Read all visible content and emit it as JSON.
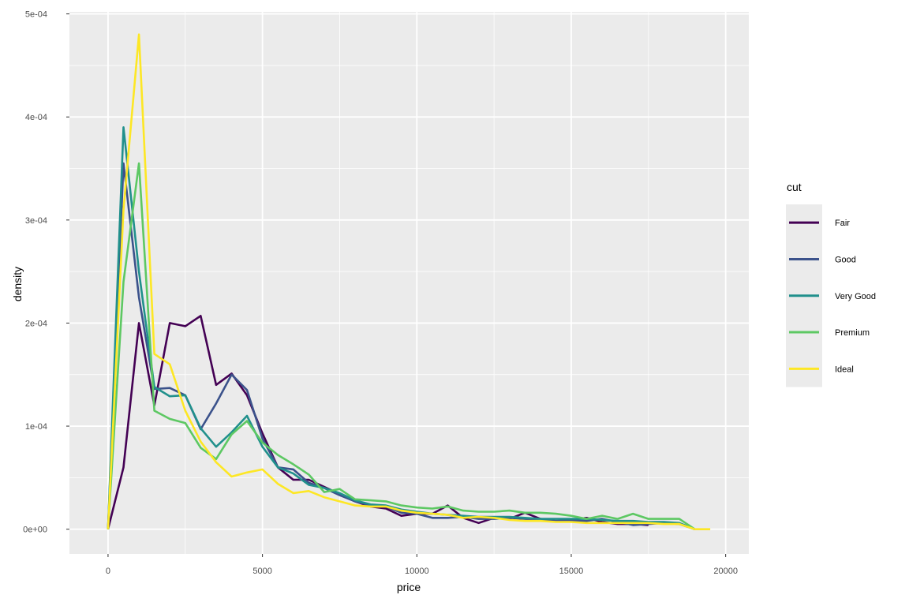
{
  "chart_data": {
    "type": "line",
    "geom": "frequency polygon (density)",
    "xlabel": "price",
    "ylabel": "density",
    "xlim": [
      -1250,
      20750
    ],
    "ylim": [
      -2.4e-05,
      0.000502
    ],
    "x_ticks": [
      0,
      5000,
      10000,
      15000,
      20000
    ],
    "x_tick_labels": [
      "0",
      "5000",
      "10000",
      "15000",
      "20000"
    ],
    "y_ticks": [
      0,
      0.0001,
      0.0002,
      0.0003,
      0.0004,
      0.0005
    ],
    "y_tick_labels": [
      "0e+00",
      "1e-04",
      "2e-04",
      "3e-04",
      "4e-04",
      "5e-04"
    ],
    "grid": true,
    "legend": {
      "title": "cut",
      "position": "right"
    },
    "series": [
      {
        "name": "Fair",
        "color": "#440154",
        "x": [
          0,
          500,
          1000,
          1500,
          2000,
          2500,
          3000,
          3500,
          4000,
          4500,
          5000,
          5500,
          6000,
          6500,
          7000,
          7500,
          8000,
          8500,
          9000,
          9500,
          10000,
          10500,
          11000,
          11500,
          12000,
          12500,
          13000,
          13500,
          14000,
          14500,
          15000,
          15500,
          16000,
          16500,
          17000,
          17500
        ],
        "y": [
          0,
          6e-05,
          0.0002,
          0.00012,
          0.0002,
          0.000197,
          0.000207,
          0.00014,
          0.000151,
          0.00013,
          9.3e-05,
          6e-05,
          4.8e-05,
          4.8e-05,
          4.1e-05,
          3.4e-05,
          2.7e-05,
          2.2e-05,
          2e-05,
          1.3e-05,
          1.5e-05,
          1.5e-05,
          2.3e-05,
          1.1e-05,
          6e-06,
          1.1e-05,
          1e-05,
          1.6e-05,
          1e-05,
          8e-06,
          9e-06,
          1.1e-05,
          7e-06,
          5e-06,
          5e-06,
          4e-06
        ]
      },
      {
        "name": "Good",
        "color": "#3B528B",
        "x": [
          0,
          500,
          1000,
          1500,
          2000,
          2500,
          3000,
          3500,
          4000,
          4500,
          5000,
          5500,
          6000,
          6500,
          7000,
          7500,
          8000,
          8500,
          9000,
          9500,
          10000,
          10500,
          11000,
          11500,
          12000,
          12500,
          13000,
          13500,
          14000,
          14500,
          15000,
          15500,
          16000,
          16500,
          17000,
          17500,
          18000,
          18500,
          19000
        ],
        "y": [
          0,
          0.000355,
          0.000225,
          0.000136,
          0.000137,
          0.00013,
          9.7e-05,
          0.000122,
          0.00015,
          0.000135,
          8.8e-05,
          6e-05,
          5.8e-05,
          4.5e-05,
          4e-05,
          3.3e-05,
          2.7e-05,
          2.3e-05,
          2.2e-05,
          1.6e-05,
          1.5e-05,
          1.1e-05,
          1.1e-05,
          1.2e-05,
          1e-05,
          1e-05,
          1.1e-05,
          1e-05,
          9e-06,
          8e-06,
          8e-06,
          8e-06,
          1e-05,
          7e-06,
          4e-06,
          5e-06,
          6e-06,
          5e-06,
          0
        ]
      },
      {
        "name": "Very Good",
        "color": "#21908C",
        "x": [
          0,
          500,
          1000,
          1500,
          2000,
          2500,
          3000,
          3500,
          4000,
          4500,
          5000,
          5500,
          6000,
          6500,
          7000,
          7500,
          8000,
          8500,
          9000,
          9500,
          10000,
          10500,
          11000,
          11500,
          12000,
          12500,
          13000,
          13500,
          14000,
          14500,
          15000,
          15500,
          16000,
          16500,
          17000,
          17500,
          18000,
          18500,
          19000
        ],
        "y": [
          0,
          0.00039,
          0.00025,
          0.000138,
          0.000129,
          0.00013,
          9.8e-05,
          8e-05,
          9.4e-05,
          0.00011,
          8e-05,
          6e-05,
          5.4e-05,
          4.3e-05,
          4e-05,
          3.5e-05,
          2.8e-05,
          2.4e-05,
          2.3e-05,
          1.9e-05,
          1.7e-05,
          1.5e-05,
          1.4e-05,
          1.3e-05,
          1.2e-05,
          1.2e-05,
          1.2e-05,
          1.1e-05,
          1e-05,
          1e-05,
          1e-05,
          1e-05,
          9e-06,
          8e-06,
          8e-06,
          7e-06,
          7e-06,
          6e-06,
          0
        ]
      },
      {
        "name": "Premium",
        "color": "#5DC863",
        "x": [
          0,
          500,
          1000,
          1500,
          2000,
          2500,
          3000,
          3500,
          4000,
          4500,
          5000,
          5500,
          6000,
          6500,
          7000,
          7500,
          8000,
          8500,
          9000,
          9500,
          10000,
          10500,
          11000,
          11500,
          12000,
          12500,
          13000,
          13500,
          14000,
          14500,
          15000,
          15500,
          16000,
          16500,
          17000,
          17500,
          18000,
          18500,
          19000
        ],
        "y": [
          0,
          0.00024,
          0.000355,
          0.000115,
          0.000107,
          0.000103,
          7.9e-05,
          6.8e-05,
          9.2e-05,
          0.000105,
          8.4e-05,
          7.2e-05,
          6.3e-05,
          5.3e-05,
          3.6e-05,
          3.9e-05,
          2.9e-05,
          2.8e-05,
          2.7e-05,
          2.3e-05,
          2.1e-05,
          2e-05,
          2.2e-05,
          1.8e-05,
          1.7e-05,
          1.7e-05,
          1.8e-05,
          1.6e-05,
          1.6e-05,
          1.5e-05,
          1.3e-05,
          1e-05,
          1.3e-05,
          1e-05,
          1.5e-05,
          1e-05,
          1e-05,
          1e-05,
          0
        ]
      },
      {
        "name": "Ideal",
        "color": "#FDE725",
        "x": [
          0,
          500,
          1000,
          1500,
          2000,
          2500,
          3000,
          3500,
          4000,
          4500,
          5000,
          5500,
          6000,
          6500,
          7000,
          7500,
          8000,
          8500,
          9000,
          9500,
          10000,
          10500,
          11000,
          11500,
          12000,
          12500,
          13000,
          13500,
          14000,
          14500,
          15000,
          15500,
          16000,
          16500,
          17000,
          17500,
          18000,
          18500,
          19000,
          19500
        ],
        "y": [
          0,
          0.00031,
          0.00048,
          0.00017,
          0.00016,
          0.000115,
          8.5e-05,
          6.5e-05,
          5.1e-05,
          5.5e-05,
          5.8e-05,
          4.4e-05,
          3.5e-05,
          3.7e-05,
          3.1e-05,
          2.7e-05,
          2.3e-05,
          2.2e-05,
          2.2e-05,
          1.8e-05,
          1.6e-05,
          1.5e-05,
          1.4e-05,
          1.1e-05,
          1.2e-05,
          1.1e-05,
          9e-06,
          8e-06,
          8e-06,
          7e-06,
          7e-06,
          6e-06,
          6e-06,
          6e-06,
          6e-06,
          6e-06,
          5e-06,
          5e-06,
          0,
          0
        ]
      }
    ]
  },
  "colors": {
    "panel_background": "#EBEBEB",
    "grid_major": "#FFFFFF",
    "tick_text": "#4D4D4D",
    "tick_mark": "#333333",
    "legend_key_background": "#EBEBEB"
  }
}
